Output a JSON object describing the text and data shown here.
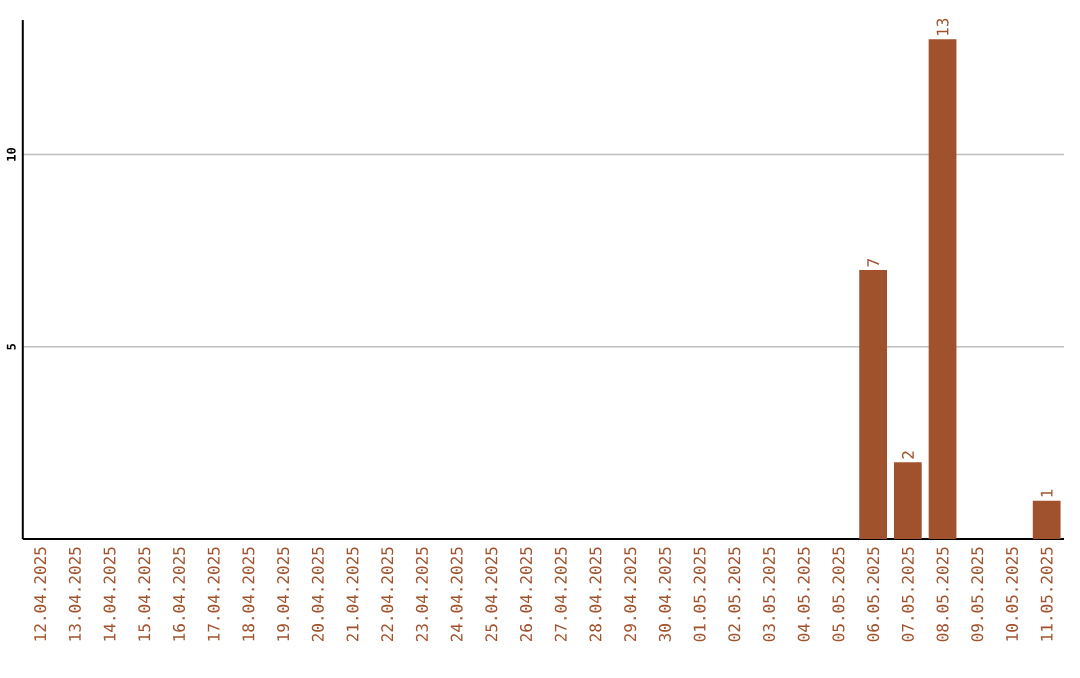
{
  "chart_data": {
    "type": "bar",
    "categories": [
      "12.04.2025",
      "13.04.2025",
      "14.04.2025",
      "15.04.2025",
      "16.04.2025",
      "17.04.2025",
      "18.04.2025",
      "19.04.2025",
      "20.04.2025",
      "21.04.2025",
      "22.04.2025",
      "23.04.2025",
      "24.04.2025",
      "25.04.2025",
      "26.04.2025",
      "27.04.2025",
      "28.04.2025",
      "29.04.2025",
      "30.04.2025",
      "01.05.2025",
      "02.05.2025",
      "03.05.2025",
      "04.05.2025",
      "05.05.2025",
      "06.05.2025",
      "07.05.2025",
      "08.05.2025",
      "09.05.2025",
      "10.05.2025",
      "11.05.2025"
    ],
    "values": [
      0,
      0,
      0,
      0,
      0,
      0,
      0,
      0,
      0,
      0,
      0,
      0,
      0,
      0,
      0,
      0,
      0,
      0,
      0,
      0,
      0,
      0,
      0,
      0,
      7,
      2,
      13,
      0,
      0,
      1
    ],
    "value_labels": [
      null,
      null,
      null,
      null,
      null,
      null,
      null,
      null,
      null,
      null,
      null,
      null,
      null,
      null,
      null,
      null,
      null,
      null,
      null,
      null,
      null,
      null,
      null,
      null,
      "7",
      "2",
      "13",
      null,
      null,
      "1"
    ],
    "color": "#a0522d",
    "ylim": [
      0,
      13.5
    ],
    "yticks": [
      5,
      10
    ],
    "grid": "y"
  }
}
